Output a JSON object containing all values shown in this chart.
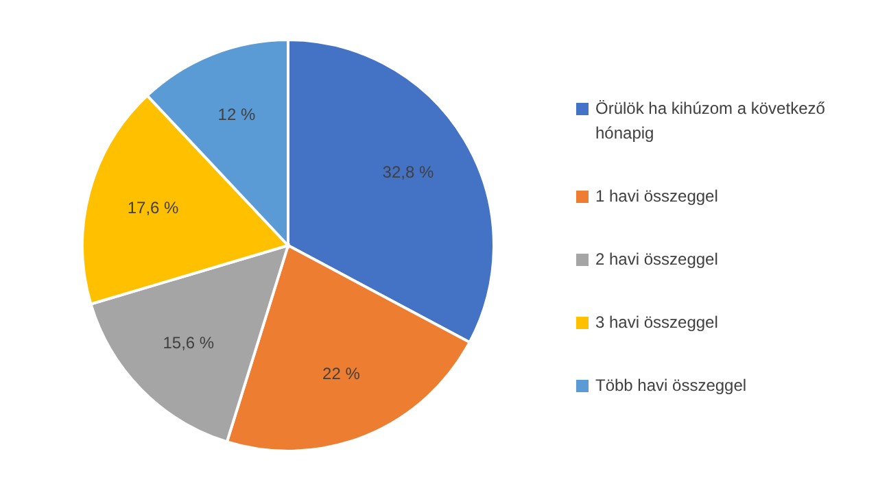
{
  "chart_data": {
    "type": "pie",
    "categories": [
      "Örülök ha kihúzom a következő hónapig",
      "1 havi összeggel",
      "2 havi összeggel",
      "3 havi összeggel",
      "Több havi összeggel"
    ],
    "values": [
      32.8,
      22,
      15.6,
      17.6,
      12
    ],
    "colors": [
      "#4472c4",
      "#ed7d31",
      "#a5a5a5",
      "#ffc000",
      "#5b9bd5"
    ],
    "value_labels": [
      "32,8 %",
      "22 %",
      "15,6 %",
      "17,6 %",
      "12 %"
    ],
    "legend": "right"
  }
}
